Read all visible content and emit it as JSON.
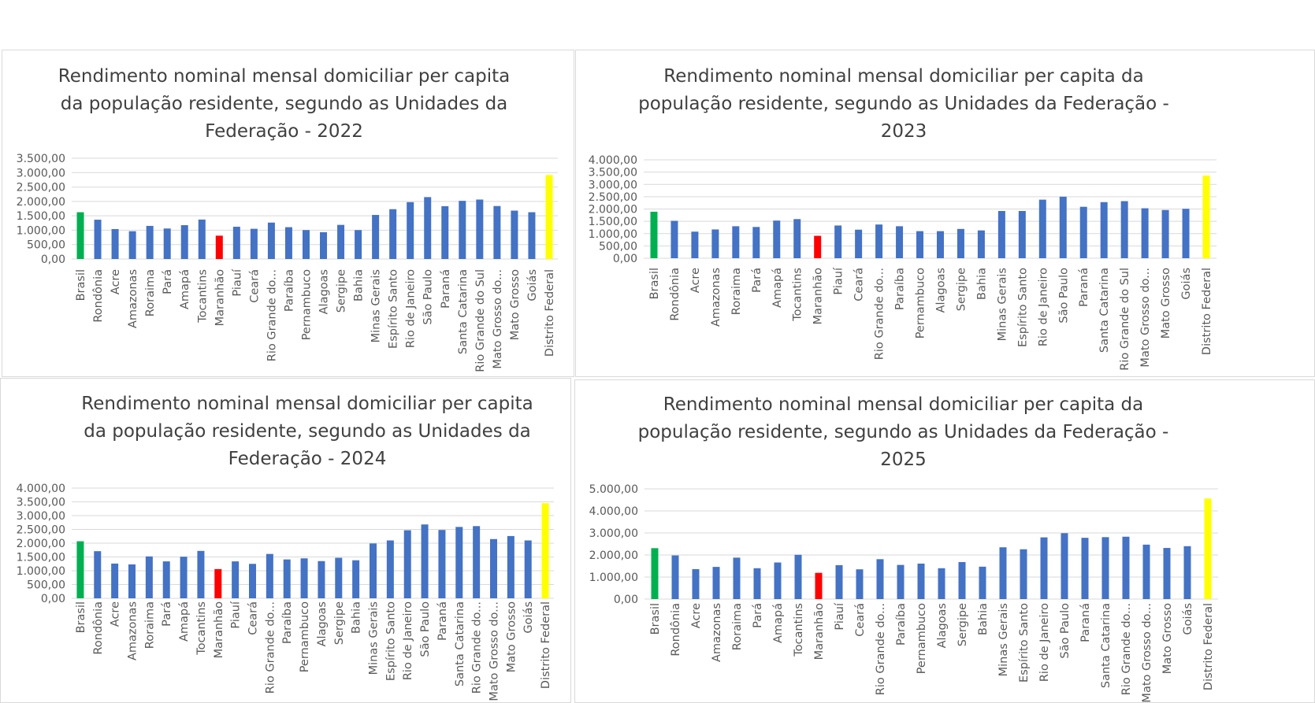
{
  "colors": {
    "default": "#4472c4",
    "brasil": "#00b050",
    "maranhao": "#ff0000",
    "distrito_federal": "#ffff00",
    "grid": "#d9d9d9",
    "text": "#595959"
  },
  "chart_data": [
    {
      "type": "bar",
      "title_lines": [
        "Rendimento nominal mensal domiciliar per capita",
        "da população residente, segundo as Unidades da",
        "Federação - 2022"
      ],
      "categories": [
        "Brasil",
        "Rondônia",
        "Acre",
        "Amazonas",
        "Roraima",
        "Pará",
        "Amapá",
        "Tocantins",
        "Maranhão",
        "Piauí",
        "Ceará",
        "Rio Grande do...",
        "Paraíba",
        "Pernambuco",
        "Alagoas",
        "Sergipe",
        "Bahia",
        "Minas Gerais",
        "Espírito Santo",
        "Rio de Janeiro",
        "São Paulo",
        "Paraná",
        "Santa Catarina",
        "Rio Grande do Sul",
        "Mato Grosso do...",
        "Mato Grosso",
        "Goiás",
        "Distrito Federal"
      ],
      "values": [
        1625,
        1365,
        1040,
        965,
        1150,
        1060,
        1175,
        1370,
        810,
        1120,
        1050,
        1265,
        1105,
        1005,
        930,
        1185,
        1005,
        1530,
        1730,
        1975,
        2150,
        1835,
        2020,
        2065,
        1840,
        1680,
        1625,
        2915
      ],
      "ylim": [
        0,
        3500
      ],
      "yticks": [
        "0,00",
        "500,00",
        "1.000,00",
        "1.500,00",
        "2.000,00",
        "2.500,00",
        "3.000,00",
        "3.500,00"
      ],
      "xlabel": "",
      "ylabel": "",
      "grid": true,
      "legend": "none"
    },
    {
      "type": "bar",
      "title_lines": [
        "Rendimento nominal mensal domiciliar per capita da",
        "população residente, segundo as Unidades da Federação -",
        "2023"
      ],
      "categories": [
        "Brasil",
        "Rondônia",
        "Acre",
        "Amazonas",
        "Roraima",
        "Pará",
        "Amapá",
        "Tocantins",
        "Maranhão",
        "Piauí",
        "Ceará",
        "Rio Grande do...",
        "Paraíba",
        "Pernambuco",
        "Alagoas",
        "Sergipe",
        "Bahia",
        "Minas Gerais",
        "Espírito Santo",
        "Rio de Janeiro",
        "São Paulo",
        "Paraná",
        "Santa Catarina",
        "Rio Grande do Sul",
        "Mato Grosso do...",
        "Mato Grosso",
        "Goiás",
        "Distrito Federal"
      ],
      "values": [
        1890,
        1520,
        1080,
        1170,
        1300,
        1270,
        1530,
        1590,
        910,
        1330,
        1160,
        1370,
        1300,
        1100,
        1100,
        1190,
        1130,
        1920,
        1920,
        2380,
        2500,
        2090,
        2280,
        2320,
        2030,
        1960,
        2010,
        3360
      ],
      "ylim": [
        0,
        4000
      ],
      "yticks": [
        "0,00",
        "500,00",
        "1.000,00",
        "1.500,00",
        "2.000,00",
        "2.500,00",
        "3.000,00",
        "3.500,00",
        "4.000,00"
      ],
      "xlabel": "",
      "ylabel": "",
      "grid": true,
      "legend": "none"
    },
    {
      "type": "bar",
      "title_lines": [
        "Rendimento nominal mensal domiciliar per capita",
        "da população residente, segundo as Unidades da",
        "Federação - 2024"
      ],
      "categories": [
        "Brasil",
        "Rondônia",
        "Acre",
        "Amazonas",
        "Roraima",
        "Pará",
        "Amapá",
        "Tocantins",
        "Maranhão",
        "Piauí",
        "Ceará",
        "Rio Grande do...",
        "Paraíba",
        "Pernambuco",
        "Alagoas",
        "Sergipe",
        "Bahia",
        "Minas Gerais",
        "Espírito Santo",
        "Rio de Janeiro",
        "São Paulo",
        "Paraná",
        "Santa Catarina",
        "Rio Grande do...",
        "Mato Grosso do...",
        "Mato Grosso",
        "Goiás",
        "Distrito Federal"
      ],
      "values": [
        2070,
        1710,
        1260,
        1230,
        1520,
        1340,
        1510,
        1720,
        1060,
        1340,
        1250,
        1610,
        1410,
        1450,
        1350,
        1470,
        1380,
        1990,
        2100,
        2470,
        2680,
        2480,
        2590,
        2620,
        2150,
        2260,
        2100,
        3450
      ],
      "ylim": [
        0,
        4000
      ],
      "yticks": [
        "0,00",
        "500,00",
        "1.000,00",
        "1.500,00",
        "2.000,00",
        "2.500,00",
        "3.000,00",
        "3.500,00",
        "4.000,00"
      ],
      "xlabel": "",
      "ylabel": "",
      "grid": true,
      "legend": "none"
    },
    {
      "type": "bar",
      "title_lines": [
        "Rendimento nominal mensal domiciliar per capita da",
        "população residente, segundo as Unidades da Federação -",
        "2025"
      ],
      "categories": [
        "Brasil",
        "Rondônia",
        "Acre",
        "Amazonas",
        "Roraima",
        "Pará",
        "Amapá",
        "Tocantins",
        "Maranhão",
        "Piauí",
        "Ceará",
        "Rio Grande do...",
        "Paraíba",
        "Pernambuco",
        "Alagoas",
        "Sergipe",
        "Bahia",
        "Minas Gerais",
        "Espírito Santo",
        "Rio de Janeiro",
        "São Paulo",
        "Paraná",
        "Santa Catarina",
        "Rio Grande do...",
        "Mato Grosso do...",
        "Mato Grosso",
        "Goiás",
        "Distrito Federal"
      ],
      "values": [
        2310,
        1980,
        1360,
        1460,
        1880,
        1400,
        1660,
        2010,
        1190,
        1540,
        1350,
        1810,
        1550,
        1610,
        1400,
        1680,
        1470,
        2350,
        2260,
        2800,
        2990,
        2780,
        2810,
        2830,
        2470,
        2320,
        2400,
        4560
      ],
      "ylim": [
        0,
        5000
      ],
      "yticks": [
        "0,00",
        "1.000,00",
        "2.000,00",
        "3.000,00",
        "4.000,00",
        "5.000,00"
      ],
      "xlabel": "",
      "ylabel": "",
      "grid": true,
      "legend": "none"
    }
  ]
}
